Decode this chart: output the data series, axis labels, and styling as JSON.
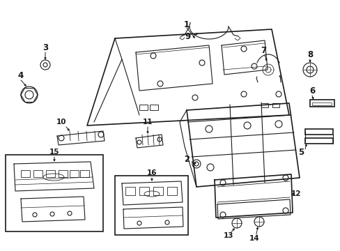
{
  "bg_color": "#ffffff",
  "line_color": "#1a1a1a",
  "gray_color": "#888888",
  "label_fs": 8.5,
  "small_fs": 7.5
}
